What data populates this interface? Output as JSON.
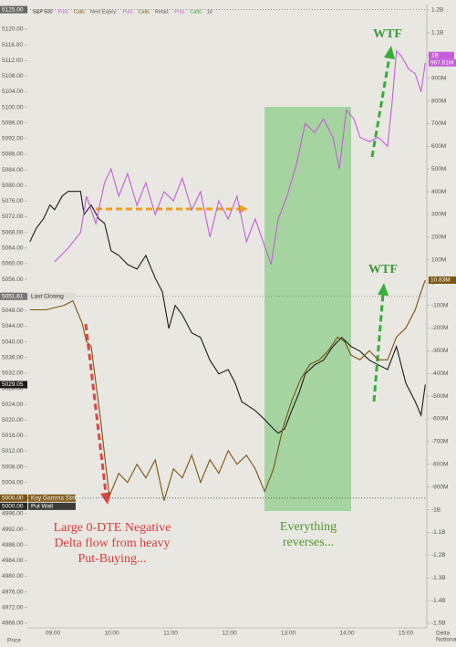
{
  "chart_data": {
    "type": "line",
    "legend": [
      "S&P 500",
      "Puts",
      "Calls",
      "Next Expiry:",
      "Puts",
      "Calls",
      "Retail:",
      "Puts",
      "Calls",
      "1d"
    ],
    "y_label": "Price",
    "y2_label": [
      "Delta",
      "Notional"
    ],
    "xlim": [
      8.566,
      15.357
    ],
    "xticks": [
      {
        "value": 9,
        "label": "09:00"
      },
      {
        "value": 10,
        "label": "10:00"
      },
      {
        "value": 11,
        "label": "11:00"
      },
      {
        "value": 12,
        "label": "12:00"
      },
      {
        "value": 13,
        "label": "13:00"
      },
      {
        "value": 14,
        "label": "14:00"
      },
      {
        "value": 15,
        "label": "15:00"
      }
    ],
    "ylim": [
      4966.8,
      5126.3
    ],
    "yticks": [
      {
        "value": 4968,
        "label": "4968.00"
      },
      {
        "value": 4972,
        "label": "4972.00"
      },
      {
        "value": 4976,
        "label": "4976.00"
      },
      {
        "value": 4980,
        "label": "4980.00"
      },
      {
        "value": 4984,
        "label": "4984.00"
      },
      {
        "value": 4988,
        "label": "4988.00"
      },
      {
        "value": 4992,
        "label": "4992.00"
      },
      {
        "value": 4996,
        "label": "4996.00"
      },
      {
        "value": 5000,
        "label": "5000.00"
      },
      {
        "value": 5004,
        "label": "5004.00"
      },
      {
        "value": 5008,
        "label": "5008.00"
      },
      {
        "value": 5012,
        "label": "5012.00"
      },
      {
        "value": 5016,
        "label": "5016.00"
      },
      {
        "value": 5020,
        "label": "5020.00"
      },
      {
        "value": 5024,
        "label": "5024.00"
      },
      {
        "value": 5028,
        "label": "5028.00"
      },
      {
        "value": 5032,
        "label": "5032.00"
      },
      {
        "value": 5036,
        "label": "5036.00"
      },
      {
        "value": 5040,
        "label": "5040.00"
      },
      {
        "value": 5044,
        "label": "5044.00"
      },
      {
        "value": 5048,
        "label": "5048.00"
      },
      {
        "value": 5052,
        "label": "5052.00"
      },
      {
        "value": 5056,
        "label": "5056.00"
      },
      {
        "value": 5060,
        "label": "5060.00"
      },
      {
        "value": 5064,
        "label": "5064.00"
      },
      {
        "value": 5068,
        "label": "5068.00"
      },
      {
        "value": 5072,
        "label": "5072.00"
      },
      {
        "value": 5076,
        "label": "5076.00"
      },
      {
        "value": 5080,
        "label": "5080.00"
      },
      {
        "value": 5084,
        "label": "5084.00"
      },
      {
        "value": 5088,
        "label": "5088.00"
      },
      {
        "value": 5092,
        "label": "5092.00"
      },
      {
        "value": 5096,
        "label": "5096.00"
      },
      {
        "value": 5100,
        "label": "5100.00"
      },
      {
        "value": 5104,
        "label": "5104.00"
      },
      {
        "value": 5108,
        "label": "5108.00"
      },
      {
        "value": 5112,
        "label": "5112.00"
      },
      {
        "value": 5116,
        "label": "5116.00"
      },
      {
        "value": 5120,
        "label": "5120.00"
      }
    ],
    "y2lim": [
      -1520000000,
      1224000000
    ],
    "y2ticks": [
      {
        "value": -1500000000,
        "label": "-1.5B"
      },
      {
        "value": -1400000000,
        "label": "-1.4B"
      },
      {
        "value": -1300000000,
        "label": "-1.3B"
      },
      {
        "value": -1200000000,
        "label": "-1.2B"
      },
      {
        "value": -1100000000,
        "label": "-1.1B"
      },
      {
        "value": -1000000000,
        "label": "-1B"
      },
      {
        "value": -900000000,
        "label": "-900M"
      },
      {
        "value": -800000000,
        "label": "-800M"
      },
      {
        "value": -700000000,
        "label": "-700M"
      },
      {
        "value": -600000000,
        "label": "-600M"
      },
      {
        "value": -500000000,
        "label": "-500M"
      },
      {
        "value": -400000000,
        "label": "-400M"
      },
      {
        "value": -300000000,
        "label": "-300M"
      },
      {
        "value": -200000000,
        "label": "-200M"
      },
      {
        "value": -100000000,
        "label": "-100M"
      },
      0,
      {
        "value": 100000000,
        "label": "100M"
      },
      {
        "value": 200000000,
        "label": "200M"
      },
      {
        "value": 300000000,
        "label": "300M"
      },
      {
        "value": 400000000,
        "label": "400M"
      },
      {
        "value": 500000000,
        "label": "500M"
      },
      {
        "value": 600000000,
        "label": "600M"
      },
      {
        "value": 700000000,
        "label": "700M"
      },
      {
        "value": 800000000,
        "label": "800M"
      },
      {
        "value": 900000000,
        "label": "900M"
      },
      {
        "value": 1000000000,
        "label": "1B"
      },
      {
        "value": 1100000000,
        "label": "1.1B"
      },
      {
        "value": 1200000000,
        "label": "1.2B"
      }
    ],
    "series": [
      {
        "name": "S&P 500",
        "color": "#1c1c1c",
        "x": [
          8.61,
          8.72,
          8.84,
          8.95,
          9.03,
          9.16,
          9.26,
          9.47,
          9.53,
          9.65,
          9.78,
          9.88,
          9.99,
          10.12,
          10.27,
          10.43,
          10.58,
          10.74,
          10.86,
          10.97,
          11.08,
          11.2,
          11.36,
          11.51,
          11.67,
          11.82,
          11.98,
          12.1,
          12.21,
          12.32,
          12.44,
          12.6,
          12.75,
          12.83,
          12.94,
          13.06,
          13.19,
          13.29,
          13.45,
          13.6,
          13.76,
          13.91,
          14.07,
          14.22,
          14.38,
          14.53,
          14.69,
          14.84,
          15.0,
          15.16,
          15.26,
          15.33
        ],
        "values": [
          5065.6,
          5069.1,
          5071.5,
          5075.0,
          5073.8,
          5077.3,
          5078.5,
          5078.5,
          5072.6,
          5075.0,
          5071.5,
          5070.3,
          5063.3,
          5062.1,
          5059.8,
          5058.6,
          5062.1,
          5056.3,
          5052.8,
          5043.4,
          5049.3,
          5046.9,
          5042.3,
          5041.1,
          5035.3,
          5031.8,
          5032.9,
          5029.4,
          5024.7,
          5023.6,
          5022.4,
          5020.1,
          5017.7,
          5016.6,
          5017.7,
          5022.4,
          5027.1,
          5031.8,
          5034.1,
          5035.3,
          5038.8,
          5041.1,
          5038.8,
          5037.6,
          5035.3,
          5034.1,
          5032.9,
          5038.8,
          5029.4,
          5024.7,
          5021.2,
          5029.05
        ]
      },
      {
        "name": "Puts",
        "color": "#c35fd8",
        "axis": "y2",
        "last_label": "967.61M",
        "x": [
          9.03,
          9.26,
          9.47,
          9.57,
          9.73,
          9.88,
          9.99,
          10.12,
          10.27,
          10.43,
          10.58,
          10.74,
          10.89,
          11.05,
          11.2,
          11.36,
          11.51,
          11.67,
          11.82,
          11.98,
          12.13,
          12.29,
          12.44,
          12.6,
          12.71,
          12.83,
          12.98,
          13.14,
          13.29,
          13.45,
          13.6,
          13.76,
          13.87,
          13.99,
          14.12,
          14.22,
          14.38,
          14.53,
          14.69,
          14.77,
          14.84,
          14.92,
          15.05,
          15.16,
          15.26,
          15.33
        ],
        "values": [
          92000000,
          152000000,
          220000000,
          380000000,
          260000000,
          440000000,
          500000000,
          380000000,
          480000000,
          340000000,
          440000000,
          300000000,
          400000000,
          360000000,
          460000000,
          320000000,
          400000000,
          200000000,
          360000000,
          280000000,
          380000000,
          180000000,
          280000000,
          160000000,
          80000000,
          280000000,
          380000000,
          520000000,
          700000000,
          660000000,
          720000000,
          640000000,
          500000000,
          760000000,
          720000000,
          640000000,
          620000000,
          640000000,
          600000000,
          800000000,
          1020000000,
          1000000000,
          940000000,
          920000000,
          840000000,
          967610000
        ]
      },
      {
        "name": "Calls",
        "color": "#7b5512",
        "axis": "y2",
        "last_label": "10.83M",
        "x": [
          8.61,
          8.88,
          9.19,
          9.34,
          9.5,
          9.57,
          9.65,
          9.81,
          9.88,
          9.96,
          10.12,
          10.27,
          10.43,
          10.58,
          10.74,
          10.89,
          11.05,
          11.2,
          11.36,
          11.51,
          11.67,
          11.82,
          11.98,
          12.13,
          12.29,
          12.44,
          12.6,
          12.75,
          12.91,
          13.06,
          13.22,
          13.37,
          13.53,
          13.68,
          13.84,
          13.96,
          14.07,
          14.22,
          14.38,
          14.53,
          14.69,
          14.84,
          15.0,
          15.16,
          15.26,
          15.33
        ],
        "values": [
          -120000000,
          -120000000,
          -100000000,
          -80000000,
          -180000000,
          -260000000,
          -280000000,
          -600000000,
          -760000000,
          -940000000,
          -840000000,
          -880000000,
          -800000000,
          -860000000,
          -780000000,
          -960000000,
          -820000000,
          -860000000,
          -760000000,
          -880000000,
          -780000000,
          -840000000,
          -740000000,
          -800000000,
          -760000000,
          -820000000,
          -920000000,
          -820000000,
          -640000000,
          -520000000,
          -420000000,
          -360000000,
          -340000000,
          -300000000,
          -240000000,
          -260000000,
          -320000000,
          -340000000,
          -300000000,
          -340000000,
          -340000000,
          -240000000,
          -200000000,
          -120000000,
          -40000000,
          10830000
        ]
      }
    ],
    "reference_lines": [
      {
        "value": 5125,
        "value_label": "5125.00",
        "color": "#666666"
      },
      {
        "value": 5051.61,
        "name": "Last Closing",
        "color": "#777777"
      },
      {
        "value": 5000,
        "value_label": "5000.00",
        "name": "Key Gamma Strike",
        "color": "#7b5512"
      },
      {
        "value": 5000,
        "value_label": "5000.00",
        "name": "Put Wall",
        "color": "#2a2a2a"
      }
    ],
    "y2_reference_lines": [
      {
        "value": 1000000000,
        "value_label": "1B",
        "color": "#c35fd8"
      }
    ],
    "annotations": [
      {
        "lines": [
          "WTF"
        ],
        "color": "#3c9a3c"
      },
      {
        "lines": [
          "WTF"
        ],
        "color": "#3c9a3c"
      },
      {
        "lines": [
          "Large 0-DTE Negative",
          "Delta flow from heavy",
          "Put-Buying..."
        ],
        "color": "#d43c3c"
      },
      {
        "lines": [
          "Everything",
          "reverses..."
        ],
        "color": "#4f9a2e"
      }
    ]
  }
}
